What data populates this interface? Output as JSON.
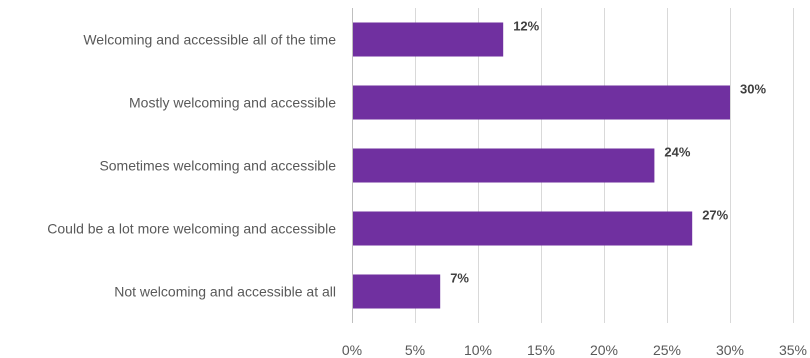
{
  "chart_data": {
    "type": "bar",
    "orientation": "horizontal",
    "title": "",
    "xlabel": "",
    "ylabel": "",
    "categories": [
      "Welcoming and accessible all of the time",
      "Mostly welcoming and accessible",
      "Sometimes welcoming and accessible",
      "Could be a lot more welcoming and accessible",
      "Not welcoming and accessible at all"
    ],
    "values": [
      12,
      30,
      24,
      27,
      7
    ],
    "data_labels": [
      "12%",
      "30%",
      "24%",
      "27%",
      "7%"
    ],
    "xlim": [
      0,
      35
    ],
    "x_ticks": [
      0,
      5,
      10,
      15,
      20,
      25,
      30,
      35
    ],
    "x_tick_labels": [
      "0%",
      "5%",
      "10%",
      "15%",
      "20%",
      "25%",
      "30%",
      "35%"
    ],
    "grid": "vertical",
    "legend": "none",
    "bar_color": "#7030a0"
  }
}
